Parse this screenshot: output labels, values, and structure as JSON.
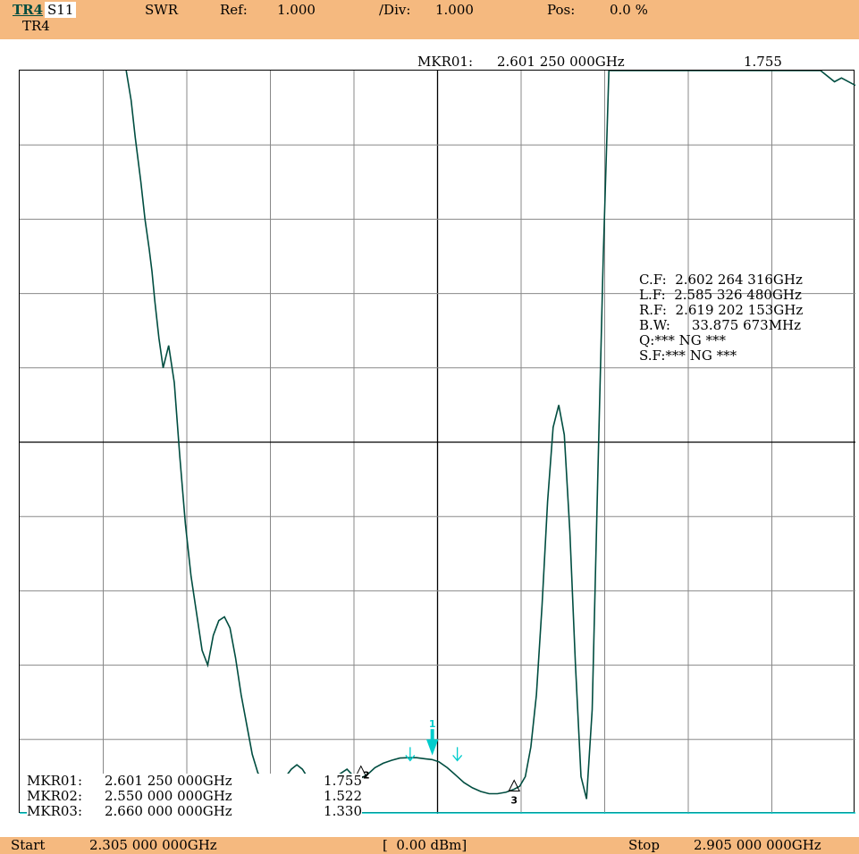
{
  "header": {
    "trace_id": "TR4",
    "trace_sub": "TR4",
    "param": "S11",
    "format": "SWR",
    "ref_label": "Ref:",
    "ref_value": "1.000",
    "div_label": "/Div:",
    "div_value": "1.000",
    "pos_label": "Pos:",
    "pos_value": "0.0 %"
  },
  "active_marker": {
    "label": "MKR01:",
    "freq": "2.601 250 000GHz",
    "value": "1.755"
  },
  "analysis": {
    "cf_label": "C.F:",
    "cf_value": "2.602 264 316GHz",
    "lf_label": "L.F:",
    "lf_value": "2.585 326 480GHz",
    "rf_label": "R.F:",
    "rf_value": "2.619 202 153GHz",
    "bw_label": "B.W:",
    "bw_value": "33.875 673MHz",
    "q_text": "Q:*** NG ***",
    "sf_text": "S.F:*** NG ***"
  },
  "marker_table": [
    {
      "label": "MKR01:",
      "freq": "2.601 250 000GHz",
      "value": "1.755"
    },
    {
      "label": "MKR02:",
      "freq": "2.550 000 000GHz",
      "value": "1.522"
    },
    {
      "label": "MKR03:",
      "freq": "2.660 000 000GHz",
      "value": "1.330"
    }
  ],
  "footer": {
    "start_label": "Start",
    "start_value": "2.305 000 000GHz",
    "power": "[  0.00 dBm]",
    "stop_label": "Stop",
    "stop_value": "2.905 000 000GHz"
  },
  "marker_numbers": [
    "1",
    "2",
    "3"
  ],
  "colors": {
    "header_bg": "#f5b97f",
    "trace": "#004d40",
    "marker": "#00cccc",
    "grid": "#888888",
    "center_line": "#000000"
  },
  "chart_data": {
    "type": "line",
    "title": "",
    "xlabel": "",
    "ylabel": "",
    "xlim": [
      2.305,
      2.905
    ],
    "ylim": [
      1.0,
      11.0
    ],
    "grid": true,
    "divisions_x": 10,
    "divisions_y": 10,
    "series": [
      {
        "x": [
          2.3815,
          2.385,
          2.388,
          2.392,
          2.395,
          2.398,
          2.4,
          2.402,
          2.405,
          2.408,
          2.412,
          2.416,
          2.42,
          2.424,
          2.428,
          2.432,
          2.436,
          2.44,
          2.444,
          2.448,
          2.452,
          2.456,
          2.46,
          2.464,
          2.468,
          2.472,
          2.476,
          2.48,
          2.484,
          2.488,
          2.492,
          2.496,
          2.5,
          2.504,
          2.508,
          2.512,
          2.516,
          2.52,
          2.524,
          2.528,
          2.532,
          2.536,
          2.54,
          2.544,
          2.548,
          2.552,
          2.556,
          2.56,
          2.566,
          2.572,
          2.578,
          2.584,
          2.59,
          2.596,
          2.601,
          2.606,
          2.612,
          2.618,
          2.624,
          2.63,
          2.636,
          2.642,
          2.648,
          2.654,
          2.66,
          2.664,
          2.668,
          2.672,
          2.676,
          2.68,
          2.684,
          2.688,
          2.692,
          2.696,
          2.7,
          2.704,
          2.708,
          2.712,
          2.716,
          2.72,
          2.724,
          2.728,
          2.732,
          2.736,
          2.74,
          2.744,
          2.748,
          2.752,
          2.756,
          2.76,
          2.764,
          2.768,
          2.772,
          2.776,
          2.78,
          2.79,
          2.8,
          2.81,
          2.82,
          2.83,
          2.84,
          2.85,
          2.86,
          2.87,
          2.88,
          2.89,
          2.895,
          2.905
        ],
        "y": [
          11.0,
          10.6,
          10.1,
          9.5,
          9.0,
          8.6,
          8.3,
          7.9,
          7.4,
          7.0,
          7.3,
          6.8,
          5.8,
          4.9,
          4.2,
          3.7,
          3.2,
          3.0,
          3.4,
          3.6,
          3.65,
          3.5,
          3.1,
          2.6,
          2.2,
          1.8,
          1.55,
          1.45,
          1.4,
          1.38,
          1.42,
          1.5,
          1.6,
          1.66,
          1.6,
          1.48,
          1.36,
          1.28,
          1.33,
          1.42,
          1.5,
          1.55,
          1.6,
          1.52,
          1.46,
          1.5,
          1.55,
          1.62,
          1.68,
          1.72,
          1.75,
          1.755,
          1.755,
          1.74,
          1.73,
          1.7,
          1.62,
          1.52,
          1.42,
          1.35,
          1.3,
          1.27,
          1.27,
          1.29,
          1.33,
          1.37,
          1.5,
          1.9,
          2.6,
          3.8,
          5.2,
          6.2,
          6.5,
          6.1,
          4.8,
          3.0,
          1.5,
          1.2,
          2.4,
          5.5,
          8.5,
          11.0,
          11.0,
          11.0,
          11.0,
          11.0,
          11.0,
          11.0,
          11.0,
          11.0,
          11.0,
          11.0,
          11.0,
          11.0,
          11.0,
          11.0,
          11.0,
          11.0,
          11.0,
          11.0,
          11.0,
          11.0,
          11.0,
          11.0,
          11.0,
          10.85,
          10.9,
          10.8
        ]
      }
    ],
    "markers": [
      {
        "id": "1",
        "x": 2.60125,
        "y": 1.755,
        "active": true
      },
      {
        "id": "2",
        "x": 2.55,
        "y": 1.522,
        "active": false
      },
      {
        "id": "3",
        "x": 2.66,
        "y": 1.33,
        "active": false
      }
    ],
    "bandwidth_points": [
      {
        "x": 2.58532648
      },
      {
        "x": 2.619202153
      }
    ],
    "reference_line": 1.0
  }
}
